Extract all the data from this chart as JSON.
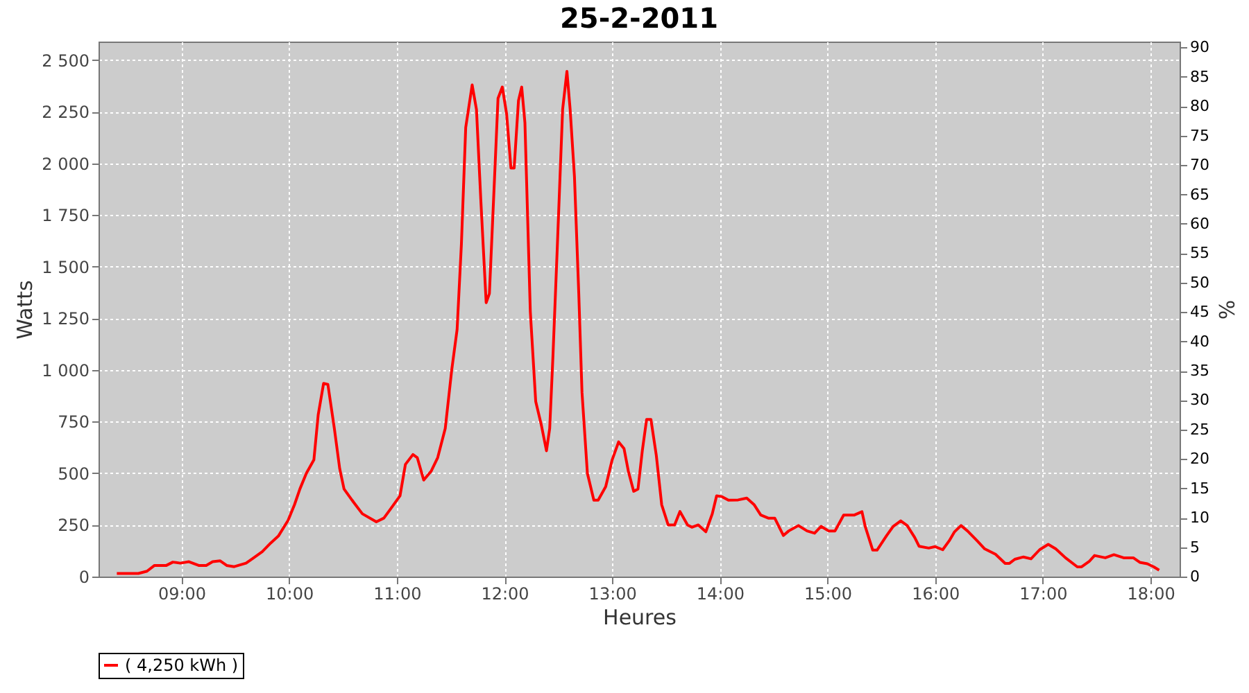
{
  "chart_data": {
    "type": "line",
    "title": "25-2-2011",
    "xlabel": "Heures",
    "ylabel": "Watts",
    "y2label": "%",
    "x": [
      8.4,
      8.6,
      8.68,
      8.75,
      8.86,
      8.92,
      8.99,
      9.07,
      9.16,
      9.23,
      9.29,
      9.36,
      9.42,
      9.49,
      9.6,
      9.66,
      9.75,
      9.83,
      9.9,
      9.99,
      10.05,
      10.1,
      10.16,
      10.23,
      10.27,
      10.32,
      10.36,
      10.42,
      10.47,
      10.51,
      10.6,
      10.68,
      10.81,
      10.88,
      10.94,
      11.03,
      11.08,
      11.15,
      11.19,
      11.25,
      11.32,
      11.38,
      11.45,
      11.51,
      11.56,
      11.6,
      11.64,
      11.7,
      11.74,
      11.78,
      11.83,
      11.86,
      11.91,
      11.94,
      11.98,
      12.02,
      12.06,
      12.09,
      12.13,
      12.16,
      12.19,
      12.24,
      12.29,
      12.34,
      12.39,
      12.42,
      12.45,
      12.49,
      12.54,
      12.58,
      12.61,
      12.65,
      12.69,
      12.72,
      12.77,
      12.83,
      12.87,
      12.94,
      13.0,
      13.06,
      13.11,
      13.15,
      13.2,
      13.24,
      13.28,
      13.32,
      13.36,
      13.41,
      13.46,
      13.52,
      13.58,
      13.63,
      13.7,
      13.74,
      13.8,
      13.87,
      13.93,
      13.97,
      14.02,
      14.08,
      14.17,
      14.25,
      14.32,
      14.38,
      14.45,
      14.51,
      14.59,
      14.64,
      14.73,
      14.81,
      14.88,
      14.94,
      15.01,
      15.07,
      15.15,
      15.25,
      15.32,
      15.35,
      15.42,
      15.46,
      15.55,
      15.61,
      15.68,
      15.74,
      15.81,
      15.85,
      15.94,
      16.0,
      16.07,
      16.13,
      16.18,
      16.24,
      16.3,
      16.39,
      16.46,
      16.56,
      16.65,
      16.69,
      16.74,
      16.82,
      16.89,
      16.97,
      17.05,
      17.12,
      17.21,
      17.32,
      17.36,
      17.43,
      17.48,
      17.58,
      17.66,
      17.75,
      17.84,
      17.9,
      17.97,
      18.03,
      18.08
    ],
    "series": [
      {
        "name": "( 4,250 kWh )",
        "color": "#ff0000",
        "values": [
          15,
          15,
          26,
          54,
          54,
          70,
          65,
          72,
          54,
          54,
          72,
          76,
          54,
          48,
          65,
          87,
          120,
          163,
          196,
          272,
          348,
          424,
          500,
          565,
          783,
          935,
          930,
          717,
          522,
          424,
          359,
          304,
          265,
          283,
          326,
          391,
          543,
          591,
          576,
          467,
          511,
          576,
          717,
          1000,
          1196,
          1609,
          2174,
          2380,
          2261,
          1826,
          1326,
          1370,
          1957,
          2315,
          2370,
          2239,
          1978,
          1978,
          2304,
          2370,
          2196,
          1283,
          848,
          739,
          609,
          717,
          1065,
          1587,
          2261,
          2446,
          2261,
          1935,
          1370,
          891,
          500,
          370,
          370,
          435,
          565,
          652,
          620,
          511,
          413,
          424,
          609,
          761,
          761,
          587,
          348,
          250,
          250,
          315,
          250,
          239,
          250,
          217,
          304,
          391,
          387,
          370,
          371,
          380,
          347,
          298,
          283,
          283,
          199,
          221,
          247,
          221,
          210,
          243,
          221,
          221,
          298,
          298,
          314,
          243,
          128,
          128,
          199,
          243,
          270,
          247,
          189,
          147,
          138,
          145,
          130,
          173,
          217,
          247,
          221,
          173,
          134,
          108,
          64,
          64,
          84,
          95,
          86,
          130,
          156,
          134,
          91,
          47,
          47,
          73,
          102,
          91,
          106,
          91,
          91,
          69,
          62,
          47,
          31
        ]
      }
    ],
    "xlim": [
      8.23,
      18.27
    ],
    "xticks": [
      {
        "value": 9,
        "label": "09:00"
      },
      {
        "value": 10,
        "label": "10:00"
      },
      {
        "value": 11,
        "label": "11:00"
      },
      {
        "value": 12,
        "label": "12:00"
      },
      {
        "value": 13,
        "label": "13:00"
      },
      {
        "value": 14,
        "label": "14:00"
      },
      {
        "value": 15,
        "label": "15:00"
      },
      {
        "value": 16,
        "label": "16:00"
      },
      {
        "value": 17,
        "label": "17:00"
      },
      {
        "value": 18,
        "label": "18:00"
      }
    ],
    "ylim": [
      0,
      2590
    ],
    "yticks": [
      0,
      250,
      500,
      750,
      {
        "value": 1000,
        "label": "1 000"
      },
      {
        "value": 1250,
        "label": "1 250"
      },
      {
        "value": 1500,
        "label": "1 500"
      },
      {
        "value": 1750,
        "label": "1 750"
      },
      {
        "value": 2000,
        "label": "2 000"
      },
      {
        "value": 2250,
        "label": "2 250"
      },
      {
        "value": 2500,
        "label": "2 500"
      }
    ],
    "y2lim": [
      0,
      91
    ],
    "y2ticks": [
      0,
      5,
      10,
      15,
      20,
      25,
      30,
      35,
      40,
      45,
      50,
      55,
      60,
      65,
      70,
      75,
      80,
      85,
      90
    ],
    "grid": true,
    "legend": "bottom",
    "marker": "none",
    "line_style": "solid"
  }
}
